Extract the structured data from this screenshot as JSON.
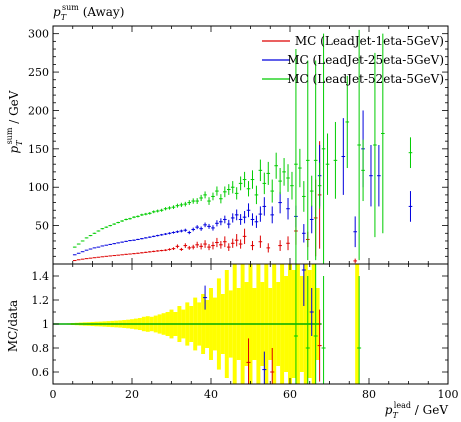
{
  "chart_data": [
    {
      "type": "scatter",
      "panel": "main",
      "title": "p_T^sum (Away)",
      "title_parts": {
        "base": "p",
        "sub": "T",
        "sup": "sum",
        "suffix": " (Away)"
      },
      "ylabel_parts": {
        "base": "p",
        "sub": "T",
        "sup": "sum",
        "suffix": " / GeV"
      },
      "xlim": [
        0,
        100
      ],
      "ylim": [
        0,
        310
      ],
      "x_ticks": [
        0,
        20,
        40,
        60,
        80,
        100
      ],
      "x_tick_labels": [
        "0",
        "20",
        "40",
        "60",
        "80",
        "100"
      ],
      "y_ticks": [
        50,
        100,
        150,
        200,
        250,
        300
      ],
      "y_tick_labels": [
        "50",
        "100",
        "150",
        "200",
        "250",
        "300"
      ],
      "grid": false,
      "legend_position": "top-right",
      "series": [
        {
          "name": "MC (LeadJet-1eta-5GeV)",
          "color": "#dd0000",
          "x": [
            5.5,
            6.5,
            7.5,
            8.5,
            9.5,
            10.5,
            11.5,
            12.5,
            13.5,
            14.5,
            15.5,
            16.5,
            17.5,
            18.5,
            19.5,
            20.5,
            21.5,
            22.5,
            23.5,
            24.5,
            25.5,
            26.5,
            27.5,
            28.5,
            29.5,
            30.5,
            31.5,
            32.5,
            33.5,
            34.5,
            35.5,
            36.5,
            37.5,
            38.5,
            39.5,
            40.5,
            41.5,
            42.5,
            43.5,
            44.5,
            45.5,
            46.5,
            47.5,
            48.5,
            50.5,
            52.5,
            54.5,
            57.5,
            59.5,
            61.5,
            64.5,
            66.5,
            67.5,
            76.5
          ],
          "y": [
            4.5,
            5.5,
            6.3,
            7.0,
            7.6,
            8.2,
            8.8,
            9.4,
            10.0,
            10.5,
            11.0,
            11.5,
            12.0,
            12.6,
            13.0,
            13.5,
            14.0,
            14.6,
            15.2,
            15.8,
            16.4,
            17.0,
            17.5,
            18.0,
            19.0,
            20.0,
            23.0,
            19.0,
            24.0,
            21.0,
            22.0,
            25.0,
            23.0,
            26.0,
            22.0,
            24.0,
            28.0,
            25.0,
            29.0,
            22.0,
            27.0,
            31.0,
            26.0,
            36.0,
            24.0,
            29.0,
            21.0,
            24.0,
            27.0,
            43.0,
            32.0,
            60.0,
            90.0,
            4.0
          ],
          "yerr": [
            0.3,
            0.3,
            0.3,
            0.3,
            0.3,
            0.3,
            0.3,
            0.4,
            0.4,
            0.4,
            0.5,
            0.5,
            0.5,
            0.6,
            0.6,
            0.7,
            0.7,
            0.8,
            0.8,
            0.9,
            1.0,
            1.0,
            1.0,
            1.2,
            1.5,
            1.8,
            2.5,
            2.0,
            3.0,
            2.5,
            3.0,
            4.0,
            4.0,
            5.0,
            4.0,
            5.0,
            6.0,
            5.0,
            7.0,
            5.0,
            6.0,
            8.0,
            6.0,
            10.0,
            6.0,
            8.0,
            6.0,
            7.0,
            9.0,
            18.0,
            10.0,
            50.0,
            70.0,
            3.0
          ]
        },
        {
          "name": "MC (LeadJet-25eta-5GeV)",
          "color": "#0000dd",
          "x": [
            5.5,
            6.5,
            7.5,
            8.5,
            9.5,
            10.5,
            11.5,
            12.5,
            13.5,
            14.5,
            15.5,
            16.5,
            17.5,
            18.5,
            19.5,
            20.5,
            21.5,
            22.5,
            23.5,
            24.5,
            25.5,
            26.5,
            27.5,
            28.5,
            29.5,
            30.5,
            31.5,
            32.5,
            33.5,
            34.5,
            35.5,
            36.5,
            37.5,
            38.5,
            39.5,
            40.5,
            41.5,
            42.5,
            43.5,
            44.5,
            45.5,
            46.5,
            47.5,
            48.5,
            49.5,
            50.5,
            51.5,
            52.5,
            53.5,
            55.5,
            57.5,
            59.5,
            61.5,
            63.5,
            65.5,
            67.5,
            73.5,
            76.5,
            78.5,
            80.5,
            82.5,
            90.5
          ],
          "y": [
            12.0,
            14.0,
            16.0,
            18.0,
            19.5,
            21.0,
            22.0,
            23.5,
            24.5,
            25.5,
            26.5,
            27.5,
            28.5,
            29.5,
            30.5,
            31.0,
            32.0,
            33.0,
            34.0,
            35.0,
            36.0,
            37.0,
            38.0,
            39.0,
            40.0,
            41.0,
            42.0,
            43.0,
            44.0,
            41.0,
            45.0,
            48.0,
            46.0,
            51.0,
            49.0,
            47.0,
            53.0,
            55.0,
            58.0,
            52.0,
            60.0,
            64.0,
            58.0,
            61.0,
            70.0,
            58.0,
            55.0,
            65.0,
            75.0,
            64.0,
            80.0,
            72.0,
            62.0,
            40.0,
            58.0,
            115.0,
            140.0,
            42.0,
            150.0,
            115.0,
            115.0,
            75.0
          ],
          "yerr": [
            0.4,
            0.4,
            0.4,
            0.4,
            0.4,
            0.5,
            0.5,
            0.5,
            0.5,
            0.6,
            0.6,
            0.6,
            0.7,
            0.7,
            0.7,
            0.8,
            0.8,
            0.9,
            0.9,
            1.0,
            1.0,
            1.1,
            1.2,
            1.3,
            1.4,
            1.5,
            1.6,
            1.8,
            2.0,
            2.2,
            2.4,
            2.6,
            2.8,
            3.0,
            3.2,
            3.5,
            4.0,
            4.5,
            5.0,
            5.5,
            6.0,
            7.0,
            7.0,
            8.0,
            9.0,
            8.0,
            8.0,
            10.0,
            12.0,
            11.0,
            14.0,
            14.0,
            14.0,
            12.0,
            18.0,
            40.0,
            50.0,
            20.0,
            50.0,
            40.0,
            40.0,
            20.0
          ]
        },
        {
          "name": "MC (LeadJet-52eta-5GeV)",
          "color": "#00cc00",
          "x": [
            5.5,
            6.5,
            7.5,
            8.5,
            9.5,
            10.5,
            11.5,
            12.5,
            13.5,
            14.5,
            15.5,
            16.5,
            17.5,
            18.5,
            19.5,
            20.5,
            21.5,
            22.5,
            23.5,
            24.5,
            25.5,
            26.5,
            27.5,
            28.5,
            29.5,
            30.5,
            31.5,
            32.5,
            33.5,
            34.5,
            35.5,
            36.5,
            37.5,
            38.5,
            39.5,
            40.5,
            41.5,
            42.5,
            43.5,
            44.5,
            45.5,
            46.5,
            47.5,
            48.5,
            49.5,
            50.5,
            51.5,
            52.5,
            53.5,
            54.5,
            55.5,
            56.5,
            57.5,
            58.5,
            59.5,
            60.5,
            61.5,
            62.5,
            63.5,
            64.5,
            65.5,
            66.5,
            67.5,
            68.5,
            69.5,
            71.5,
            74.5,
            77.5,
            78.5,
            81.5,
            83.5,
            90.5
          ],
          "y": [
            22.0,
            26.0,
            30.0,
            34.0,
            37.0,
            40.0,
            43.0,
            46.0,
            48.0,
            50.0,
            52.0,
            54.0,
            56.0,
            58.0,
            59.0,
            61.0,
            62.0,
            64.0,
            65.0,
            66.0,
            68.0,
            69.0,
            70.0,
            72.0,
            73.0,
            74.0,
            76.0,
            77.0,
            78.0,
            80.0,
            82.0,
            82.0,
            86.0,
            90.0,
            82.0,
            88.0,
            95.0,
            85.0,
            94.0,
            97.0,
            100.0,
            92.0,
            105.0,
            110.0,
            98.0,
            110.0,
            90.0,
            122.0,
            105.0,
            118.0,
            95.0,
            128.0,
            108.0,
            120.0,
            112.0,
            102.0,
            130.0,
            125.0,
            88.0,
            135.0,
            95.0,
            135.0,
            102.0,
            150.0,
            130.0,
            135.0,
            185.0,
            155.0,
            122.0,
            155.0,
            170.0,
            145.0
          ],
          "yerr": [
            0.6,
            0.6,
            0.6,
            0.6,
            0.7,
            0.7,
            0.8,
            0.8,
            0.9,
            0.9,
            1.0,
            1.0,
            1.1,
            1.2,
            1.2,
            1.3,
            1.4,
            1.5,
            1.6,
            1.7,
            1.8,
            1.9,
            2.0,
            2.1,
            2.2,
            2.4,
            2.6,
            2.8,
            3.0,
            3.2,
            3.5,
            3.8,
            4.0,
            4.5,
            5.0,
            5.0,
            6.0,
            6.0,
            7.0,
            7.0,
            8.0,
            8.0,
            9.0,
            10.0,
            10.0,
            12.0,
            12.0,
            14.0,
            14.0,
            15.0,
            15.0,
            17.0,
            17.0,
            18.0,
            18.0,
            18.0,
            150.0,
            25.0,
            20.0,
            130.0,
            20.0,
            130.0,
            30.0,
            150.0,
            40.0,
            50.0,
            60.0,
            150.0,
            40.0,
            120.0,
            130.0,
            20.0
          ]
        }
      ]
    },
    {
      "type": "scatter",
      "panel": "ratio",
      "title": "",
      "ylabel": "MC/data",
      "xlabel_parts": {
        "base": "p",
        "sub": "T",
        "sup": "lead",
        "suffix": " / GeV"
      },
      "xlim": [
        0,
        100
      ],
      "ylim": [
        0.5,
        1.5
      ],
      "x_ticks": [
        0,
        20,
        40,
        60,
        80,
        100
      ],
      "x_tick_labels": [
        "0",
        "20",
        "40",
        "60",
        "80",
        "100"
      ],
      "y_ticks": [
        0.6,
        0.8,
        1.0,
        1.2,
        1.4
      ],
      "y_tick_labels": [
        "0.6",
        "0.8",
        "1",
        "1.2",
        "1.4"
      ],
      "reference_line": 1.0,
      "reference_line_color": "#00aa00",
      "band_color": "#ffff00",
      "grid": false,
      "data_uncertainty_band": {
        "x": [
          2,
          4,
          5,
          6,
          7,
          8,
          9,
          10,
          11,
          12,
          13,
          14,
          15,
          16,
          17,
          18,
          19,
          20,
          21,
          22,
          23,
          24,
          25,
          26,
          27,
          28,
          29,
          30,
          31,
          32,
          33,
          34,
          35,
          36,
          37,
          38,
          39,
          40,
          41,
          42,
          43,
          44,
          45,
          46,
          47,
          48,
          49,
          50,
          51,
          52,
          53,
          54,
          55,
          56,
          57,
          58,
          59,
          60,
          61,
          62,
          63,
          64,
          65,
          66,
          67,
          68,
          76,
          77,
          78
        ],
        "half_width": [
          0.0,
          0.005,
          0.008,
          0.01,
          0.012,
          0.014,
          0.015,
          0.017,
          0.019,
          0.02,
          0.022,
          0.024,
          0.026,
          0.028,
          0.03,
          0.033,
          0.036,
          0.04,
          0.045,
          0.05,
          0.06,
          0.065,
          0.06,
          0.07,
          0.08,
          0.09,
          0.1,
          0.12,
          0.1,
          0.15,
          0.12,
          0.18,
          0.15,
          0.22,
          0.18,
          0.25,
          0.2,
          0.3,
          0.22,
          0.38,
          0.25,
          0.45,
          0.28,
          0.5,
          0.3,
          0.5,
          0.35,
          0.5,
          0.3,
          0.5,
          0.35,
          0.5,
          0.3,
          0.5,
          0.35,
          0.5,
          0.4,
          0.5,
          0.45,
          0.5,
          0.4,
          0.5,
          0.45,
          0.5,
          0.3,
          0.0,
          0.0,
          0.5,
          0.0
        ]
      },
      "series": [
        {
          "name": "MC (LeadJet-1eta-5GeV)",
          "color": "#dd0000",
          "x": [
            49.5,
            55.5,
            67.5
          ],
          "y": [
            0.68,
            0.6,
            0.82
          ],
          "yerr": [
            0.2,
            0.2,
            0.3
          ]
        },
        {
          "name": "MC (LeadJet-25eta-5GeV)",
          "color": "#0000dd",
          "x": [
            38.5,
            53.5,
            63.5,
            65.5
          ],
          "y": [
            1.22,
            0.62,
            1.45,
            1.1
          ],
          "yerr": [
            0.1,
            0.15,
            0.3,
            0.2
          ]
        },
        {
          "name": "MC (LeadJet-52eta-5GeV)",
          "color": "#00cc00",
          "x": [
            61.5,
            64.5,
            66.5,
            68.5,
            77.5
          ],
          "y": [
            0.9,
            0.8,
            0.9,
            0.8,
            0.8
          ],
          "yerr": [
            0.6,
            0.6,
            0.6,
            0.6,
            0.6
          ]
        }
      ]
    }
  ]
}
